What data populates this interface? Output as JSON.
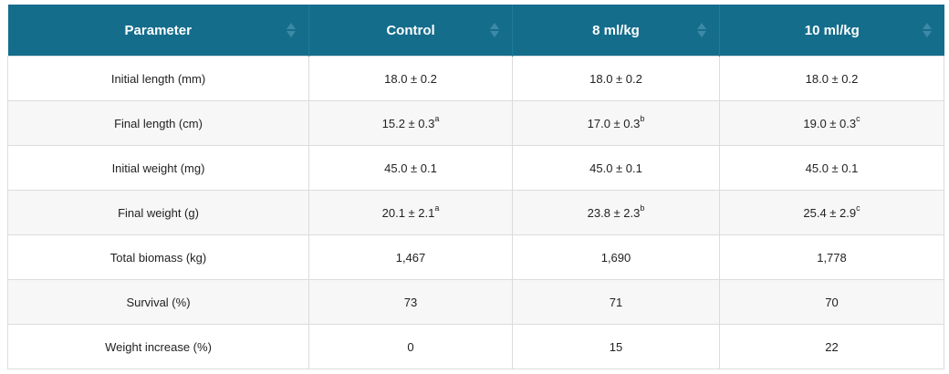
{
  "table": {
    "headers": [
      "Parameter",
      "Control",
      "8 ml/kg",
      "10 ml/kg"
    ],
    "rows": [
      {
        "parameter": "Initial length (mm)",
        "control": "18.0 ± 0.2",
        "control_sup": "",
        "ml8": "18.0 ± 0.2",
        "ml8_sup": "",
        "ml10": "18.0 ± 0.2",
        "ml10_sup": ""
      },
      {
        "parameter": "Final length (cm)",
        "control": "15.2 ± 0.3",
        "control_sup": "a",
        "ml8": "17.0 ± 0.3",
        "ml8_sup": "b",
        "ml10": "19.0 ± 0.3",
        "ml10_sup": "c"
      },
      {
        "parameter": "Initial weight (mg)",
        "control": "45.0 ± 0.1",
        "control_sup": "",
        "ml8": "45.0 ± 0.1",
        "ml8_sup": "",
        "ml10": "45.0 ± 0.1",
        "ml10_sup": ""
      },
      {
        "parameter": "Final weight (g)",
        "control": "20.1 ± 2.1",
        "control_sup": "a",
        "ml8": "23.8 ± 2.3",
        "ml8_sup": "b",
        "ml10": "25.4 ± 2.9",
        "ml10_sup": "c"
      },
      {
        "parameter": "Total biomass (kg)",
        "control": "1,467",
        "control_sup": "",
        "ml8": "1,690",
        "ml8_sup": "",
        "ml10": "1,778",
        "ml10_sup": ""
      },
      {
        "parameter": "Survival (%)",
        "control": "73",
        "control_sup": "",
        "ml8": "71",
        "ml8_sup": "",
        "ml10": "70",
        "ml10_sup": ""
      },
      {
        "parameter": "Weight increase (%)",
        "control": "0",
        "control_sup": "",
        "ml8": "15",
        "ml8_sup": "",
        "ml10": "22",
        "ml10_sup": ""
      }
    ]
  },
  "colors": {
    "header_bg": "#156d8c",
    "header_text": "#ffffff",
    "row_alt": "#f7f7f7"
  },
  "icons": {
    "sort": "sort-icon"
  }
}
